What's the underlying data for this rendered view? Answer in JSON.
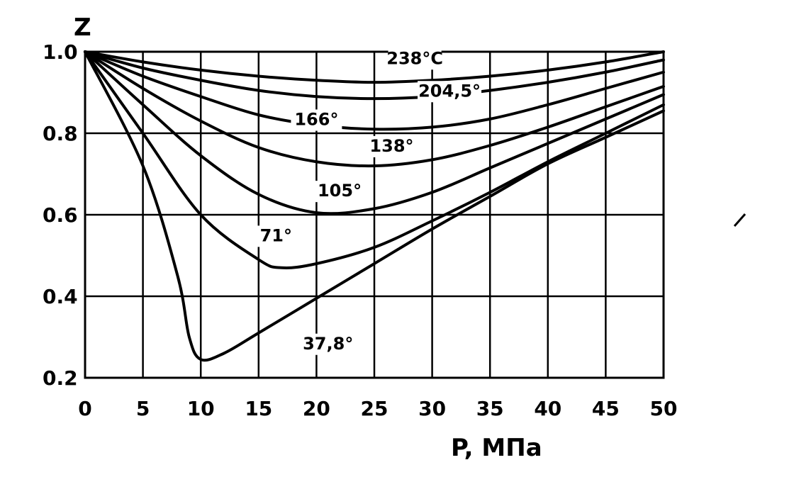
{
  "chart_data": {
    "type": "line",
    "title": "",
    "xlabel": "P, МПа",
    "ylabel": "Z",
    "xlim": [
      0,
      50
    ],
    "ylim": [
      0.2,
      1.0
    ],
    "x_ticks": [
      "0",
      "5",
      "10",
      "15",
      "20",
      "25",
      "30",
      "35",
      "40",
      "45",
      "50"
    ],
    "y_ticks": [
      "0.2",
      "0.4",
      "0.6",
      "0.8",
      "1.0"
    ],
    "grid": true,
    "legend": "none",
    "series": [
      {
        "name": "238°C",
        "color": "#000000",
        "points": [
          [
            0,
            1.0
          ],
          [
            5,
            0.975
          ],
          [
            10,
            0.955
          ],
          [
            15,
            0.94
          ],
          [
            20,
            0.93
          ],
          [
            25,
            0.925
          ],
          [
            30,
            0.93
          ],
          [
            35,
            0.94
          ],
          [
            40,
            0.955
          ],
          [
            45,
            0.975
          ],
          [
            50,
            1.0
          ]
        ]
      },
      {
        "name": "204,5°",
        "color": "#000000",
        "points": [
          [
            0,
            1.0
          ],
          [
            5,
            0.96
          ],
          [
            10,
            0.93
          ],
          [
            15,
            0.905
          ],
          [
            20,
            0.89
          ],
          [
            25,
            0.885
          ],
          [
            30,
            0.89
          ],
          [
            35,
            0.905
          ],
          [
            40,
            0.925
          ],
          [
            45,
            0.95
          ],
          [
            50,
            0.98
          ]
        ]
      },
      {
        "name": "166°",
        "color": "#000000",
        "points": [
          [
            0,
            1.0
          ],
          [
            5,
            0.94
          ],
          [
            10,
            0.89
          ],
          [
            15,
            0.845
          ],
          [
            20,
            0.82
          ],
          [
            25,
            0.81
          ],
          [
            30,
            0.815
          ],
          [
            35,
            0.835
          ],
          [
            40,
            0.87
          ],
          [
            45,
            0.91
          ],
          [
            50,
            0.95
          ]
        ]
      },
      {
        "name": "138°",
        "color": "#000000",
        "points": [
          [
            0,
            1.0
          ],
          [
            5,
            0.91
          ],
          [
            10,
            0.83
          ],
          [
            15,
            0.765
          ],
          [
            20,
            0.73
          ],
          [
            25,
            0.72
          ],
          [
            30,
            0.735
          ],
          [
            35,
            0.77
          ],
          [
            40,
            0.815
          ],
          [
            45,
            0.865
          ],
          [
            50,
            0.915
          ]
        ]
      },
      {
        "name": "105°",
        "color": "#000000",
        "points": [
          [
            0,
            1.0
          ],
          [
            5,
            0.87
          ],
          [
            10,
            0.745
          ],
          [
            15,
            0.65
          ],
          [
            20,
            0.605
          ],
          [
            25,
            0.615
          ],
          [
            30,
            0.655
          ],
          [
            35,
            0.715
          ],
          [
            40,
            0.775
          ],
          [
            45,
            0.835
          ],
          [
            50,
            0.895
          ]
        ]
      },
      {
        "name": "71°",
        "color": "#000000",
        "points": [
          [
            0,
            1.0
          ],
          [
            5,
            0.8
          ],
          [
            10,
            0.6
          ],
          [
            15,
            0.49
          ],
          [
            17,
            0.47
          ],
          [
            20,
            0.48
          ],
          [
            25,
            0.52
          ],
          [
            30,
            0.585
          ],
          [
            35,
            0.655
          ],
          [
            40,
            0.73
          ],
          [
            45,
            0.8
          ],
          [
            50,
            0.87
          ]
        ]
      },
      {
        "name": "37,8°",
        "color": "#000000",
        "points": [
          [
            0,
            1.0
          ],
          [
            5,
            0.72
          ],
          [
            8,
            0.45
          ],
          [
            9,
            0.3
          ],
          [
            10,
            0.245
          ],
          [
            12,
            0.26
          ],
          [
            15,
            0.31
          ],
          [
            20,
            0.395
          ],
          [
            25,
            0.48
          ],
          [
            30,
            0.565
          ],
          [
            35,
            0.645
          ],
          [
            40,
            0.725
          ],
          [
            45,
            0.79
          ],
          [
            50,
            0.855
          ]
        ]
      }
    ],
    "labels": [
      {
        "text": "238°C",
        "x": 28.5,
        "y": 0.97
      },
      {
        "text": "204,5°",
        "x": 31.5,
        "y": 0.89
      },
      {
        "text": "166°",
        "x": 20,
        "y": 0.82
      },
      {
        "text": "138°",
        "x": 26.5,
        "y": 0.755
      },
      {
        "text": "105°",
        "x": 22,
        "y": 0.645
      },
      {
        "text": "71°",
        "x": 16.5,
        "y": 0.535
      },
      {
        "text": "37,8°",
        "x": 21,
        "y": 0.27
      }
    ]
  }
}
